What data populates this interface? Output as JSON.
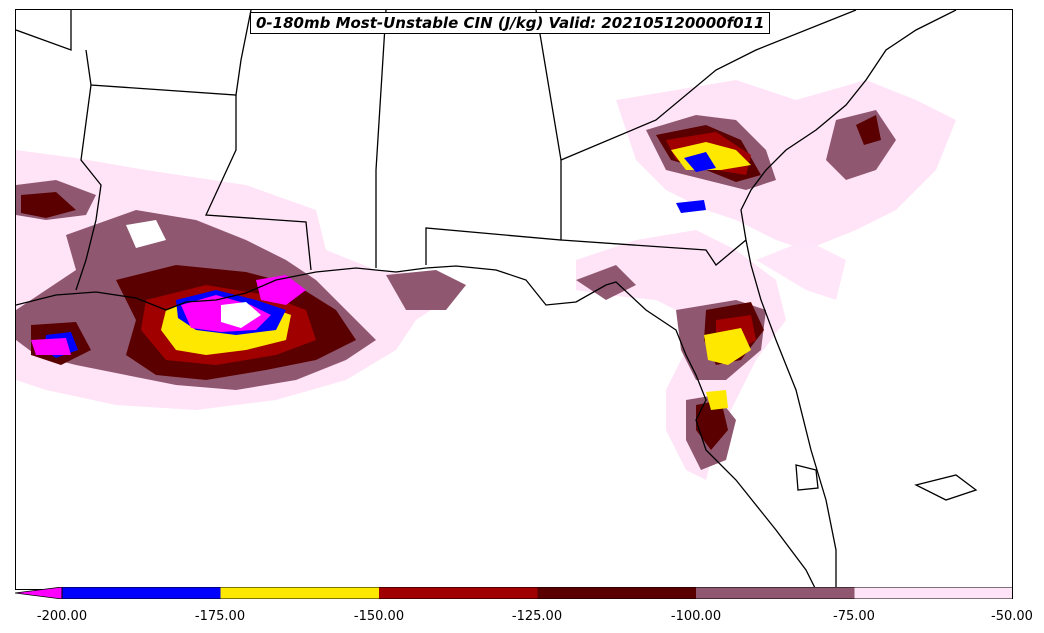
{
  "title": "0-180mb Most-Unstable CIN (J/kg) Valid: 202105120000f011",
  "colors": {
    "below_-200": "#ff00ff",
    "-200_-175": "#0000ff",
    "-175_-150": "#ffe800",
    "-150_-125": "#a00000",
    "-125_-100": "#5a0000",
    "-100_-75": "#905870",
    "-75_-50": "#ffe4f8",
    "coastline": "#000000"
  },
  "colorbar": {
    "ticks": [
      "-200.00",
      "-175.00",
      "-150.00",
      "-125.00",
      "-100.00",
      "-75.00",
      "-50.00"
    ],
    "extend": "min"
  },
  "icons": {
    "map": "cin-contour-map",
    "colorbar": "colorbar"
  }
}
